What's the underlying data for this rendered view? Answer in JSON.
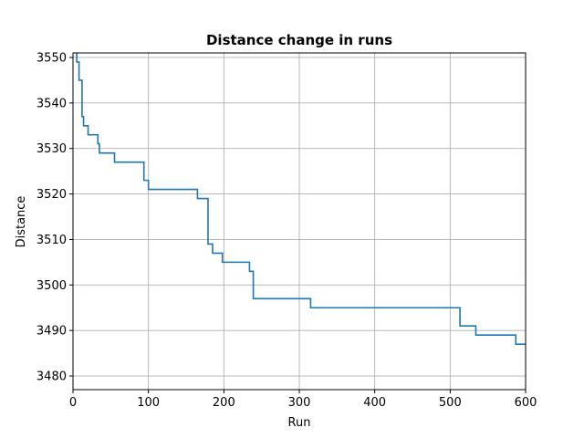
{
  "chart_data": {
    "type": "line",
    "title": "Distance change in runs",
    "xlabel": "Run",
    "ylabel": "Distance",
    "xlim": [
      0,
      600
    ],
    "ylim": [
      3477,
      3551
    ],
    "xticks": [
      0,
      100,
      200,
      300,
      400,
      500,
      600
    ],
    "yticks": [
      3480,
      3490,
      3500,
      3510,
      3520,
      3530,
      3540,
      3550
    ],
    "grid": true,
    "line_color": "#1f77b4",
    "step": "post",
    "series": [
      {
        "points": [
          [
            0,
            3555
          ],
          [
            5,
            3549
          ],
          [
            8,
            3545
          ],
          [
            12,
            3537
          ],
          [
            14,
            3535
          ],
          [
            20,
            3533
          ],
          [
            33,
            3531
          ],
          [
            35,
            3529
          ],
          [
            55,
            3527
          ],
          [
            94,
            3523
          ],
          [
            100,
            3521
          ],
          [
            165,
            3519
          ],
          [
            179,
            3509
          ],
          [
            185,
            3507
          ],
          [
            198,
            3505
          ],
          [
            234,
            3503
          ],
          [
            239,
            3497
          ],
          [
            315,
            3495
          ],
          [
            513,
            3491
          ],
          [
            534,
            3489
          ],
          [
            587,
            3487
          ],
          [
            600,
            3487
          ]
        ]
      }
    ]
  }
}
